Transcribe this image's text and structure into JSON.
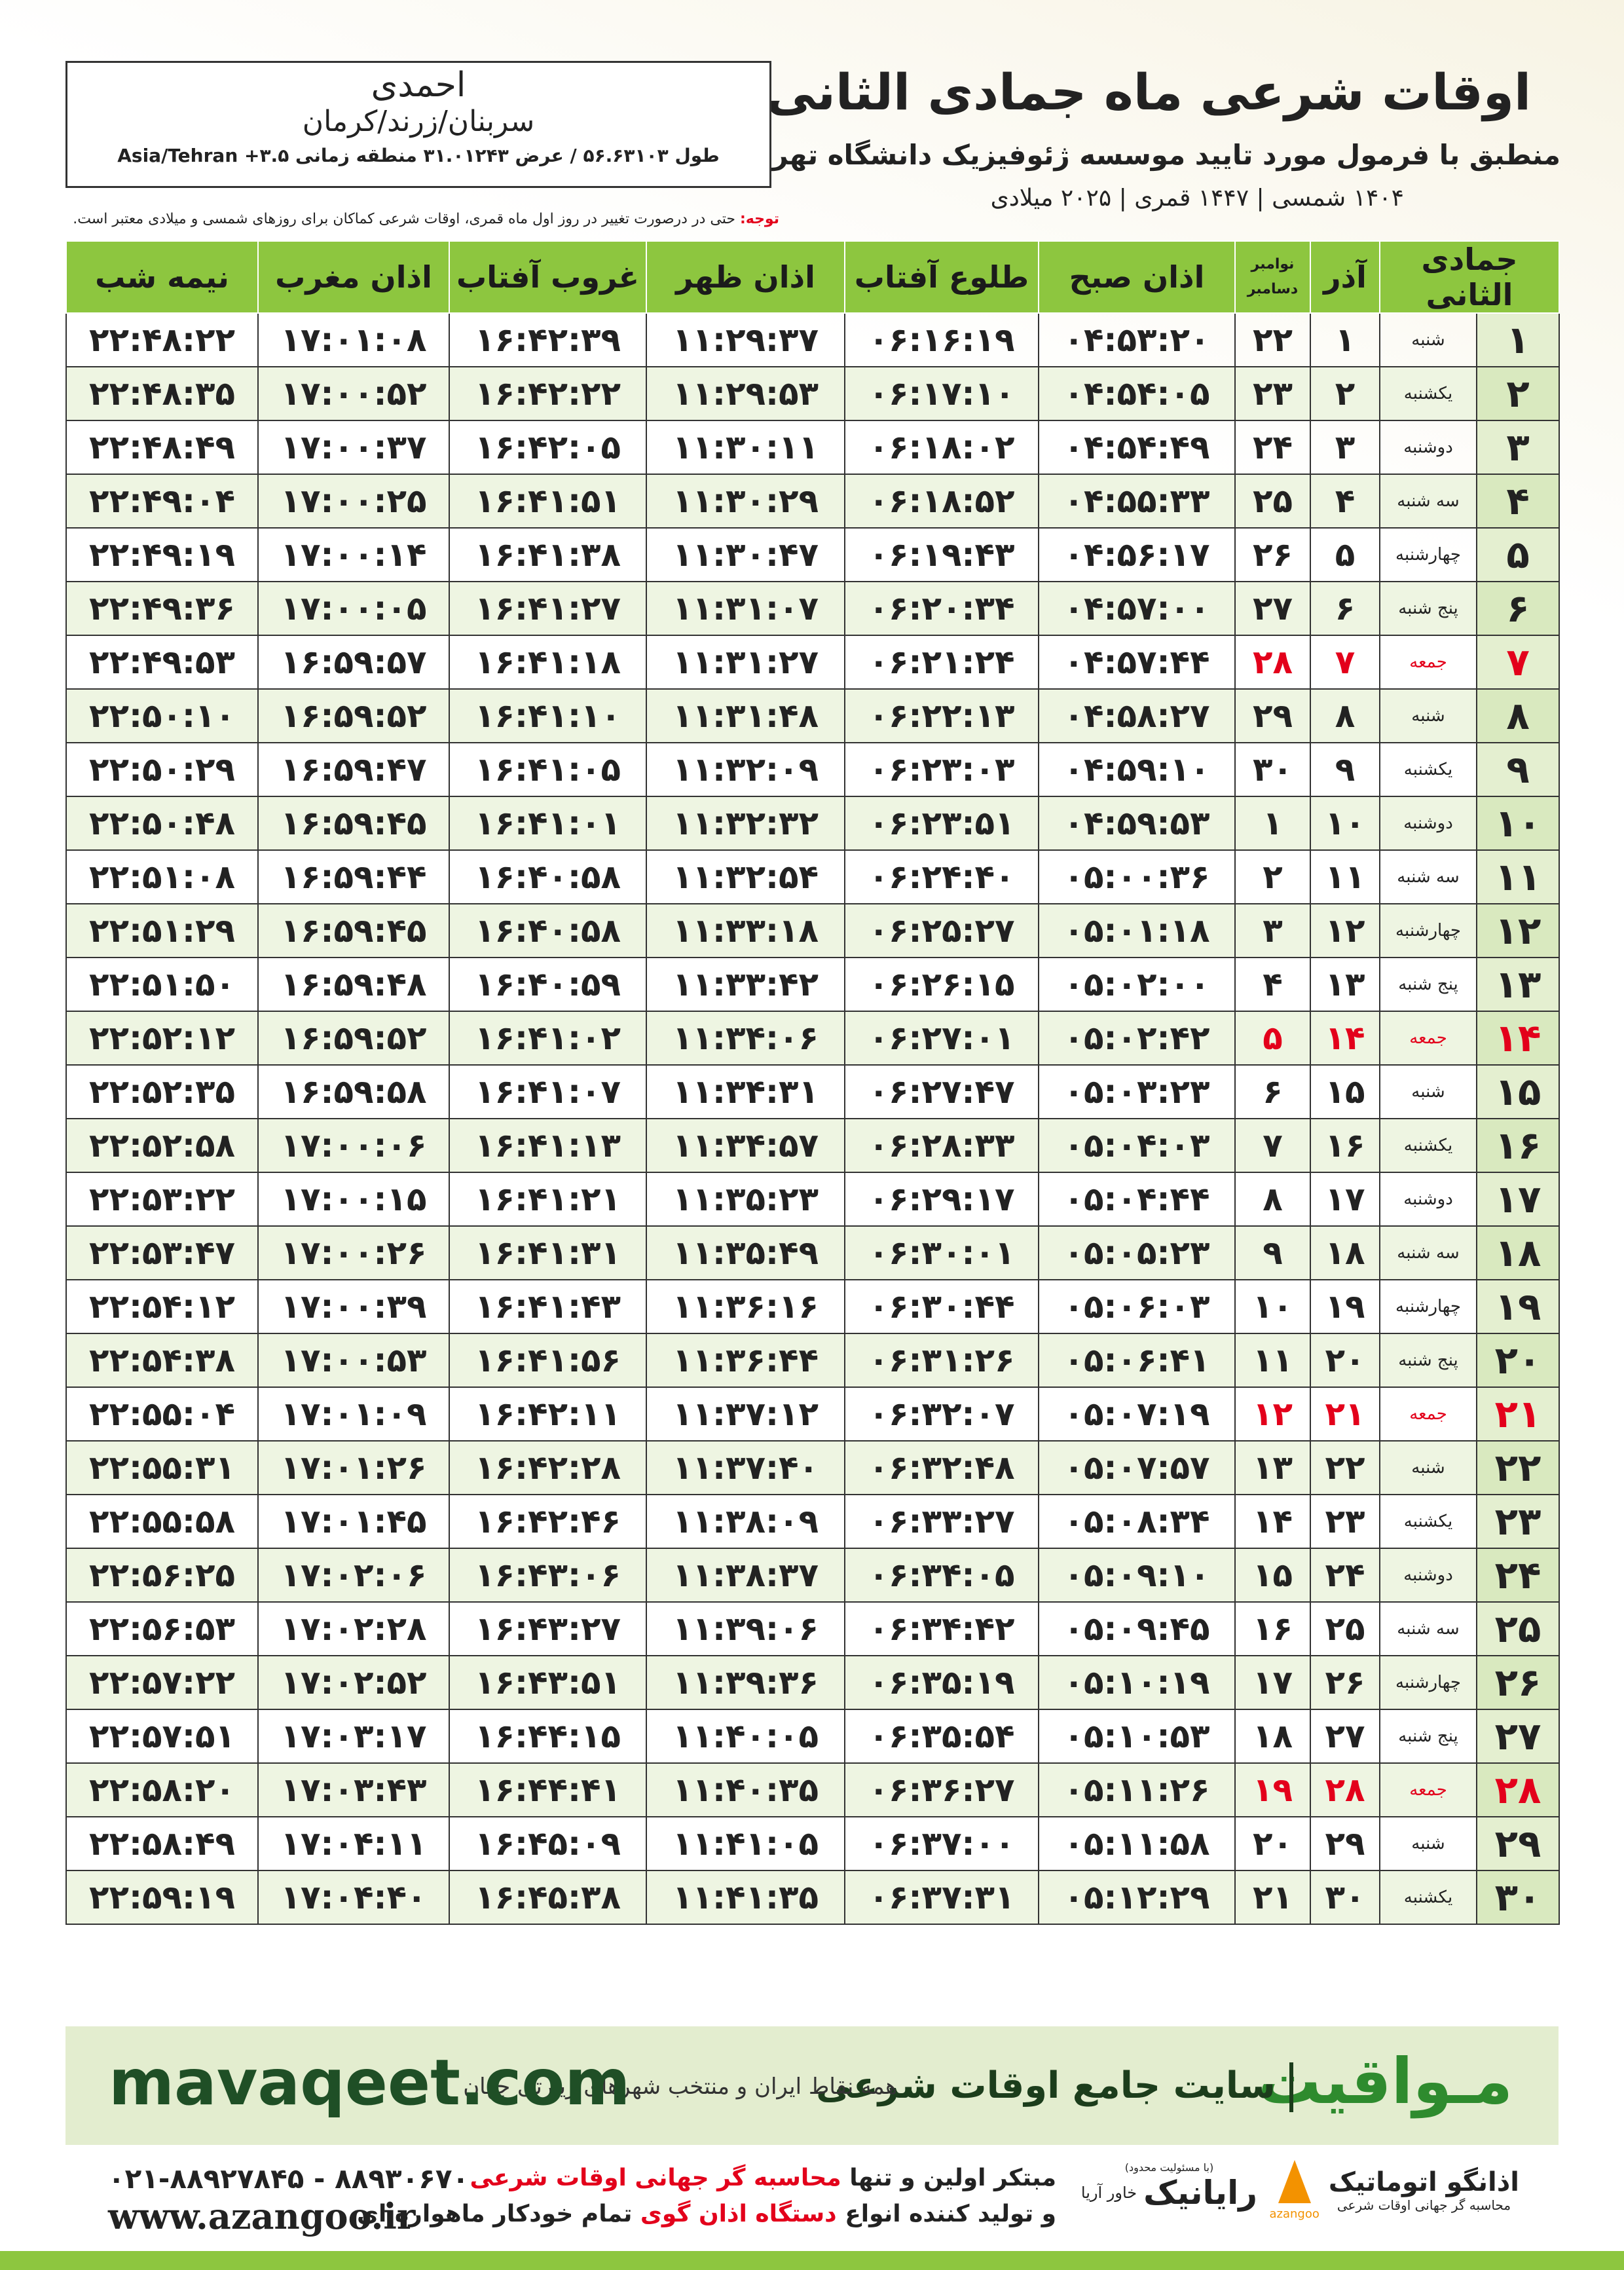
{
  "header": {
    "title": "اوقات شرعی ماه جمادی الثانی",
    "subtitle": "منطبق با فرمول مورد تایید موسسه ژئوفیزیک دانشگاه تهران",
    "dates": "۱۴۰۴ شمسی | ۱۴۴۷ قمری | ۲۰۲۵ میلادی"
  },
  "location": {
    "name": "احمدی",
    "city": "سربنان/زرند/کرمان",
    "coords": "طول ۵۶.۶۳۱۰۳ / عرض ۳۱.۰۱۲۴۳ منطقه زمانی ۳.۵+ Asia/Tehran"
  },
  "note": {
    "label": "توجه:",
    "text": "حتی در درصورت تغییر در روز اول ماه قمری، اوقات شرعی کماکان برای روزهای شمسی و میلادی معتبر است."
  },
  "table": {
    "columns": [
      "جمادی الثانی",
      "آذر",
      {
        "top": "نوامبر",
        "bottom": "دسامبر"
      },
      "اذان صبح",
      "طلوع آفتاب",
      "اذان ظهر",
      "غروب آفتاب",
      "اذان مغرب",
      "نیمه شب"
    ],
    "holiday_rows": [
      6,
      13,
      20,
      27
    ],
    "holiday_color": "#e3001b",
    "rows": [
      [
        "۱",
        "شنبه",
        "۱",
        "۲۲",
        "۰۴:۵۳:۲۰",
        "۰۶:۱۶:۱۹",
        "۱۱:۲۹:۳۷",
        "۱۶:۴۲:۳۹",
        "۱۷:۰۱:۰۸",
        "۲۲:۴۸:۲۲"
      ],
      [
        "۲",
        "یکشنبه",
        "۲",
        "۲۳",
        "۰۴:۵۴:۰۵",
        "۰۶:۱۷:۱۰",
        "۱۱:۲۹:۵۳",
        "۱۶:۴۲:۲۲",
        "۱۷:۰۰:۵۲",
        "۲۲:۴۸:۳۵"
      ],
      [
        "۳",
        "دوشنبه",
        "۳",
        "۲۴",
        "۰۴:۵۴:۴۹",
        "۰۶:۱۸:۰۲",
        "۱۱:۳۰:۱۱",
        "۱۶:۴۲:۰۵",
        "۱۷:۰۰:۳۷",
        "۲۲:۴۸:۴۹"
      ],
      [
        "۴",
        "سه شنبه",
        "۴",
        "۲۵",
        "۰۴:۵۵:۳۳",
        "۰۶:۱۸:۵۲",
        "۱۱:۳۰:۲۹",
        "۱۶:۴۱:۵۱",
        "۱۷:۰۰:۲۵",
        "۲۲:۴۹:۰۴"
      ],
      [
        "۵",
        "چهارشنبه",
        "۵",
        "۲۶",
        "۰۴:۵۶:۱۷",
        "۰۶:۱۹:۴۳",
        "۱۱:۳۰:۴۷",
        "۱۶:۴۱:۳۸",
        "۱۷:۰۰:۱۴",
        "۲۲:۴۹:۱۹"
      ],
      [
        "۶",
        "پنج شنبه",
        "۶",
        "۲۷",
        "۰۴:۵۷:۰۰",
        "۰۶:۲۰:۳۴",
        "۱۱:۳۱:۰۷",
        "۱۶:۴۱:۲۷",
        "۱۷:۰۰:۰۵",
        "۲۲:۴۹:۳۶"
      ],
      [
        "۷",
        "جمعه",
        "۷",
        "۲۸",
        "۰۴:۵۷:۴۴",
        "۰۶:۲۱:۲۴",
        "۱۱:۳۱:۲۷",
        "۱۶:۴۱:۱۸",
        "۱۶:۵۹:۵۷",
        "۲۲:۴۹:۵۳"
      ],
      [
        "۸",
        "شنبه",
        "۸",
        "۲۹",
        "۰۴:۵۸:۲۷",
        "۰۶:۲۲:۱۳",
        "۱۱:۳۱:۴۸",
        "۱۶:۴۱:۱۰",
        "۱۶:۵۹:۵۲",
        "۲۲:۵۰:۱۰"
      ],
      [
        "۹",
        "یکشنبه",
        "۹",
        "۳۰",
        "۰۴:۵۹:۱۰",
        "۰۶:۲۳:۰۳",
        "۱۱:۳۲:۰۹",
        "۱۶:۴۱:۰۵",
        "۱۶:۵۹:۴۷",
        "۲۲:۵۰:۲۹"
      ],
      [
        "۱۰",
        "دوشنبه",
        "۱۰",
        "۱",
        "۰۴:۵۹:۵۳",
        "۰۶:۲۳:۵۱",
        "۱۱:۳۲:۳۲",
        "۱۶:۴۱:۰۱",
        "۱۶:۵۹:۴۵",
        "۲۲:۵۰:۴۸"
      ],
      [
        "۱۱",
        "سه شنبه",
        "۱۱",
        "۲",
        "۰۵:۰۰:۳۶",
        "۰۶:۲۴:۴۰",
        "۱۱:۳۲:۵۴",
        "۱۶:۴۰:۵۸",
        "۱۶:۵۹:۴۴",
        "۲۲:۵۱:۰۸"
      ],
      [
        "۱۲",
        "چهارشنبه",
        "۱۲",
        "۳",
        "۰۵:۰۱:۱۸",
        "۰۶:۲۵:۲۷",
        "۱۱:۳۳:۱۸",
        "۱۶:۴۰:۵۸",
        "۱۶:۵۹:۴۵",
        "۲۲:۵۱:۲۹"
      ],
      [
        "۱۳",
        "پنج شنبه",
        "۱۳",
        "۴",
        "۰۵:۰۲:۰۰",
        "۰۶:۲۶:۱۵",
        "۱۱:۳۳:۴۲",
        "۱۶:۴۰:۵۹",
        "۱۶:۵۹:۴۸",
        "۲۲:۵۱:۵۰"
      ],
      [
        "۱۴",
        "جمعه",
        "۱۴",
        "۵",
        "۰۵:۰۲:۴۲",
        "۰۶:۲۷:۰۱",
        "۱۱:۳۴:۰۶",
        "۱۶:۴۱:۰۲",
        "۱۶:۵۹:۵۲",
        "۲۲:۵۲:۱۲"
      ],
      [
        "۱۵",
        "شنبه",
        "۱۵",
        "۶",
        "۰۵:۰۳:۲۳",
        "۰۶:۲۷:۴۷",
        "۱۱:۳۴:۳۱",
        "۱۶:۴۱:۰۷",
        "۱۶:۵۹:۵۸",
        "۲۲:۵۲:۳۵"
      ],
      [
        "۱۶",
        "یکشنبه",
        "۱۶",
        "۷",
        "۰۵:۰۴:۰۳",
        "۰۶:۲۸:۳۳",
        "۱۱:۳۴:۵۷",
        "۱۶:۴۱:۱۳",
        "۱۷:۰۰:۰۶",
        "۲۲:۵۲:۵۸"
      ],
      [
        "۱۷",
        "دوشنبه",
        "۱۷",
        "۸",
        "۰۵:۰۴:۴۴",
        "۰۶:۲۹:۱۷",
        "۱۱:۳۵:۲۳",
        "۱۶:۴۱:۲۱",
        "۱۷:۰۰:۱۵",
        "۲۲:۵۳:۲۲"
      ],
      [
        "۱۸",
        "سه شنبه",
        "۱۸",
        "۹",
        "۰۵:۰۵:۲۳",
        "۰۶:۳۰:۰۱",
        "۱۱:۳۵:۴۹",
        "۱۶:۴۱:۳۱",
        "۱۷:۰۰:۲۶",
        "۲۲:۵۳:۴۷"
      ],
      [
        "۱۹",
        "چهارشنبه",
        "۱۹",
        "۱۰",
        "۰۵:۰۶:۰۳",
        "۰۶:۳۰:۴۴",
        "۱۱:۳۶:۱۶",
        "۱۶:۴۱:۴۳",
        "۱۷:۰۰:۳۹",
        "۲۲:۵۴:۱۲"
      ],
      [
        "۲۰",
        "پنج شنبه",
        "۲۰",
        "۱۱",
        "۰۵:۰۶:۴۱",
        "۰۶:۳۱:۲۶",
        "۱۱:۳۶:۴۴",
        "۱۶:۴۱:۵۶",
        "۱۷:۰۰:۵۳",
        "۲۲:۵۴:۳۸"
      ],
      [
        "۲۱",
        "جمعه",
        "۲۱",
        "۱۲",
        "۰۵:۰۷:۱۹",
        "۰۶:۳۲:۰۷",
        "۱۱:۳۷:۱۲",
        "۱۶:۴۲:۱۱",
        "۱۷:۰۱:۰۹",
        "۲۲:۵۵:۰۴"
      ],
      [
        "۲۲",
        "شنبه",
        "۲۲",
        "۱۳",
        "۰۵:۰۷:۵۷",
        "۰۶:۳۲:۴۸",
        "۱۱:۳۷:۴۰",
        "۱۶:۴۲:۲۸",
        "۱۷:۰۱:۲۶",
        "۲۲:۵۵:۳۱"
      ],
      [
        "۲۳",
        "یکشنبه",
        "۲۳",
        "۱۴",
        "۰۵:۰۸:۳۴",
        "۰۶:۳۳:۲۷",
        "۱۱:۳۸:۰۹",
        "۱۶:۴۲:۴۶",
        "۱۷:۰۱:۴۵",
        "۲۲:۵۵:۵۸"
      ],
      [
        "۲۴",
        "دوشنبه",
        "۲۴",
        "۱۵",
        "۰۵:۰۹:۱۰",
        "۰۶:۳۴:۰۵",
        "۱۱:۳۸:۳۷",
        "۱۶:۴۳:۰۶",
        "۱۷:۰۲:۰۶",
        "۲۲:۵۶:۲۵"
      ],
      [
        "۲۵",
        "سه شنبه",
        "۲۵",
        "۱۶",
        "۰۵:۰۹:۴۵",
        "۰۶:۳۴:۴۲",
        "۱۱:۳۹:۰۶",
        "۱۶:۴۳:۲۷",
        "۱۷:۰۲:۲۸",
        "۲۲:۵۶:۵۳"
      ],
      [
        "۲۶",
        "چهارشنبه",
        "۲۶",
        "۱۷",
        "۰۵:۱۰:۱۹",
        "۰۶:۳۵:۱۹",
        "۱۱:۳۹:۳۶",
        "۱۶:۴۳:۵۱",
        "۱۷:۰۲:۵۲",
        "۲۲:۵۷:۲۲"
      ],
      [
        "۲۷",
        "پنج شنبه",
        "۲۷",
        "۱۸",
        "۰۵:۱۰:۵۳",
        "۰۶:۳۵:۵۴",
        "۱۱:۴۰:۰۵",
        "۱۶:۴۴:۱۵",
        "۱۷:۰۳:۱۷",
        "۲۲:۵۷:۵۱"
      ],
      [
        "۲۸",
        "جمعه",
        "۲۸",
        "۱۹",
        "۰۵:۱۱:۲۶",
        "۰۶:۳۶:۲۷",
        "۱۱:۴۰:۳۵",
        "۱۶:۴۴:۴۱",
        "۱۷:۰۳:۴۳",
        "۲۲:۵۸:۲۰"
      ],
      [
        "۲۹",
        "شنبه",
        "۲۹",
        "۲۰",
        "۰۵:۱۱:۵۸",
        "۰۶:۳۷:۰۰",
        "۱۱:۴۱:۰۵",
        "۱۶:۴۵:۰۹",
        "۱۷:۰۴:۱۱",
        "۲۲:۵۸:۴۹"
      ],
      [
        "۳۰",
        "یکشنبه",
        "۳۰",
        "۲۱",
        "۰۵:۱۲:۲۹",
        "۰۶:۳۷:۳۱",
        "۱۱:۴۱:۳۵",
        "۱۶:۴۵:۳۸",
        "۱۷:۰۴:۴۰",
        "۲۲:۵۹:۱۹"
      ]
    ]
  },
  "banner": {
    "brand": "مـواقیت",
    "slogan": "سایت جامع اوقات شرعی",
    "tagline": "همه نقاط ایران و منتخب شهرهای زیارتی جهان",
    "url": "mavaqeet.com"
  },
  "contact": {
    "phones": "۰۲۱-۸۸۹۲۷۸۴۵ - ۸۸۹۳۰۶۷۰",
    "website": "www.azangoo.ir",
    "line1": [
      "مبتکر اولین و تنها",
      "محاسبه گر جهانی اوقات شرعی"
    ],
    "line2": [
      "و تولید کننده انواع",
      "دستگاه اذان گوی",
      "تمام خودکار ماهواره ای"
    ]
  },
  "logos": {
    "rayanik": "رایانیک",
    "rayanik_sub": "خاور آریا",
    "rayanik_note": "(با مسئولیت محدود)",
    "azangoo": "اذانگو اتوماتیک",
    "azangoo_sub": "محاسبه گر جهانی اوقات شرعی",
    "azangoo_latin": "azangoo"
  }
}
